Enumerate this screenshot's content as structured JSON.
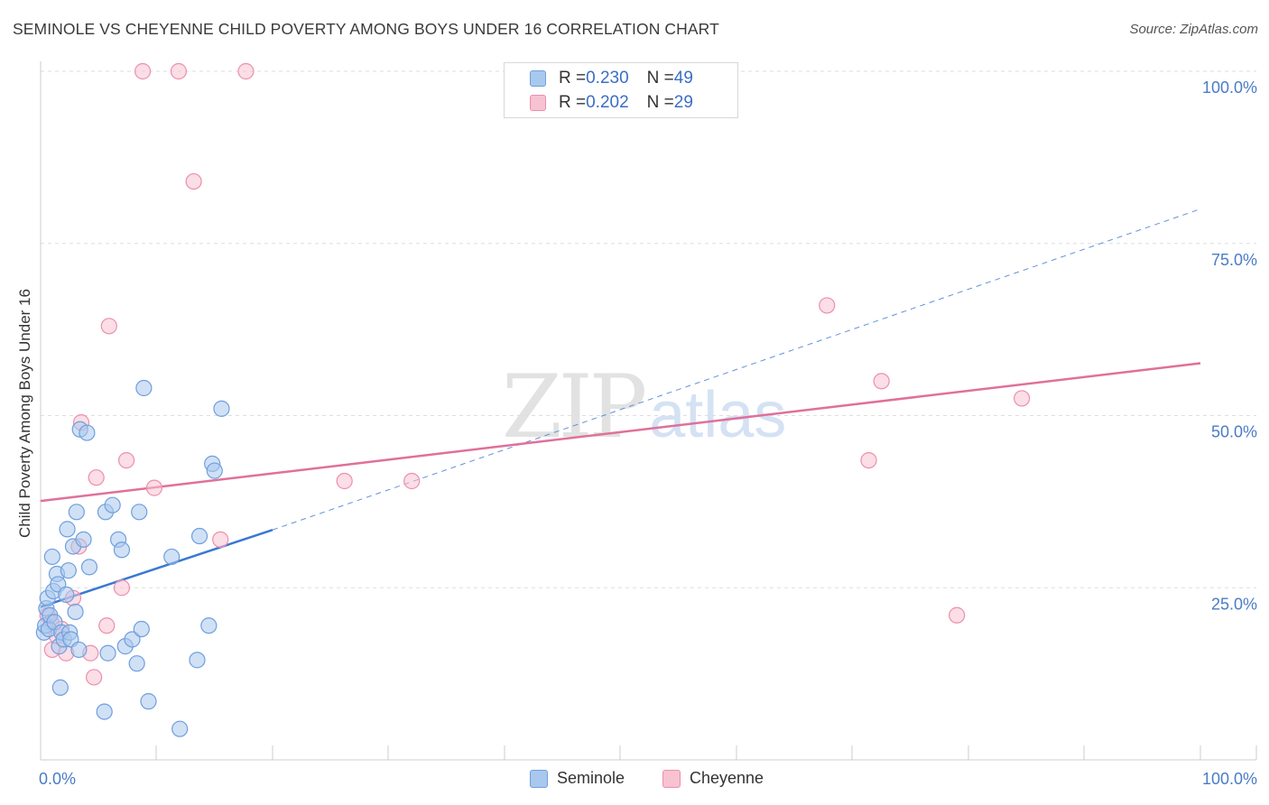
{
  "title": "SEMINOLE VS CHEYENNE CHILD POVERTY AMONG BOYS UNDER 16 CORRELATION CHART",
  "source": "Source: ZipAtlas.com",
  "watermark": {
    "zip": "ZIP",
    "atlas": "atlas"
  },
  "legend": {
    "rows": [
      {
        "r_label": "R = ",
        "r_value": "0.230",
        "n_label": "N = ",
        "n_value": "49"
      },
      {
        "r_label": "R = ",
        "r_value": "0.202",
        "n_label": "N = ",
        "n_value": "29"
      }
    ]
  },
  "bottom_legend": {
    "seminole": "Seminole",
    "cheyenne": "Cheyenne"
  },
  "colors": {
    "seminole_fill": "#a9c8ee",
    "seminole_stroke": "#6f9fdc",
    "seminole_line": "#3a78d0",
    "cheyenne_fill": "#f7c2d2",
    "cheyenne_stroke": "#ec8fae",
    "cheyenne_line": "#e0709a",
    "grid": "#dddddd"
  },
  "chart_data": {
    "type": "scatter",
    "title": "SEMINOLE VS CHEYENNE CHILD POVERTY AMONG BOYS UNDER 16 CORRELATION CHART",
    "xlabel": "",
    "ylabel": "Child Poverty Among Boys Under 16",
    "xlim": [
      0,
      100
    ],
    "ylim": [
      0,
      100
    ],
    "x_tick_labels": [
      "0.0%",
      "100.0%"
    ],
    "y_tick_labels": [
      "25.0%",
      "50.0%",
      "75.0%",
      "100.0%"
    ],
    "y_ticks": [
      25,
      50,
      75,
      100
    ],
    "series": [
      {
        "name": "Seminole",
        "R": 0.23,
        "N": 49,
        "trend": {
          "x0": 0,
          "y0": 22.2,
          "x1": 20,
          "y1": 33.4,
          "dash_to_x": 100,
          "dash_to_y": 80
        },
        "points": [
          [
            0.3,
            18.5
          ],
          [
            0.4,
            19.5
          ],
          [
            0.5,
            22
          ],
          [
            0.6,
            23.5
          ],
          [
            0.7,
            19
          ],
          [
            0.8,
            21
          ],
          [
            1.0,
            29.5
          ],
          [
            1.1,
            24.5
          ],
          [
            1.2,
            20
          ],
          [
            1.4,
            27
          ],
          [
            1.5,
            25.5
          ],
          [
            1.6,
            16.5
          ],
          [
            1.7,
            10.5
          ],
          [
            1.8,
            18.5
          ],
          [
            2.0,
            17.5
          ],
          [
            2.2,
            24
          ],
          [
            2.3,
            33.5
          ],
          [
            2.4,
            27.5
          ],
          [
            2.5,
            18.5
          ],
          [
            2.6,
            17.5
          ],
          [
            2.8,
            31
          ],
          [
            3.0,
            21.5
          ],
          [
            3.1,
            36
          ],
          [
            3.3,
            16
          ],
          [
            3.4,
            48
          ],
          [
            3.7,
            32
          ],
          [
            4.0,
            47.5
          ],
          [
            4.2,
            28
          ],
          [
            5.5,
            7
          ],
          [
            5.6,
            36
          ],
          [
            5.8,
            15.5
          ],
          [
            6.2,
            37
          ],
          [
            6.7,
            32
          ],
          [
            7.0,
            30.5
          ],
          [
            7.3,
            16.5
          ],
          [
            7.9,
            17.5
          ],
          [
            8.3,
            14
          ],
          [
            8.5,
            36
          ],
          [
            8.7,
            19
          ],
          [
            8.9,
            54
          ],
          [
            9.3,
            8.5
          ],
          [
            11.3,
            29.5
          ],
          [
            12.0,
            4.5
          ],
          [
            13.5,
            14.5
          ],
          [
            13.7,
            32.5
          ],
          [
            14.5,
            19.5
          ],
          [
            14.8,
            43
          ],
          [
            15.0,
            42
          ],
          [
            15.6,
            51
          ]
        ]
      },
      {
        "name": "Cheyenne",
        "R": 0.202,
        "N": 29,
        "trend": {
          "x0": 0,
          "y0": 37.6,
          "x1": 100,
          "y1": 57.6
        },
        "points": [
          [
            0.6,
            21
          ],
          [
            0.9,
            20
          ],
          [
            1.0,
            16
          ],
          [
            1.4,
            18
          ],
          [
            1.8,
            19
          ],
          [
            2.2,
            15.5
          ],
          [
            2.8,
            23.5
          ],
          [
            3.3,
            31
          ],
          [
            3.5,
            49
          ],
          [
            4.3,
            15.5
          ],
          [
            4.6,
            12
          ],
          [
            4.8,
            41
          ],
          [
            5.7,
            19.5
          ],
          [
            5.9,
            63
          ],
          [
            7.0,
            25
          ],
          [
            7.4,
            43.5
          ],
          [
            8.8,
            100
          ],
          [
            9.8,
            39.5
          ],
          [
            11.9,
            100
          ],
          [
            13.2,
            84
          ],
          [
            15.5,
            32
          ],
          [
            17.7,
            100
          ],
          [
            26.2,
            40.5
          ],
          [
            32.0,
            40.5
          ],
          [
            67.8,
            66
          ],
          [
            71.4,
            43.5
          ],
          [
            72.5,
            55
          ],
          [
            79.0,
            21
          ],
          [
            84.6,
            52.5
          ]
        ]
      }
    ]
  }
}
